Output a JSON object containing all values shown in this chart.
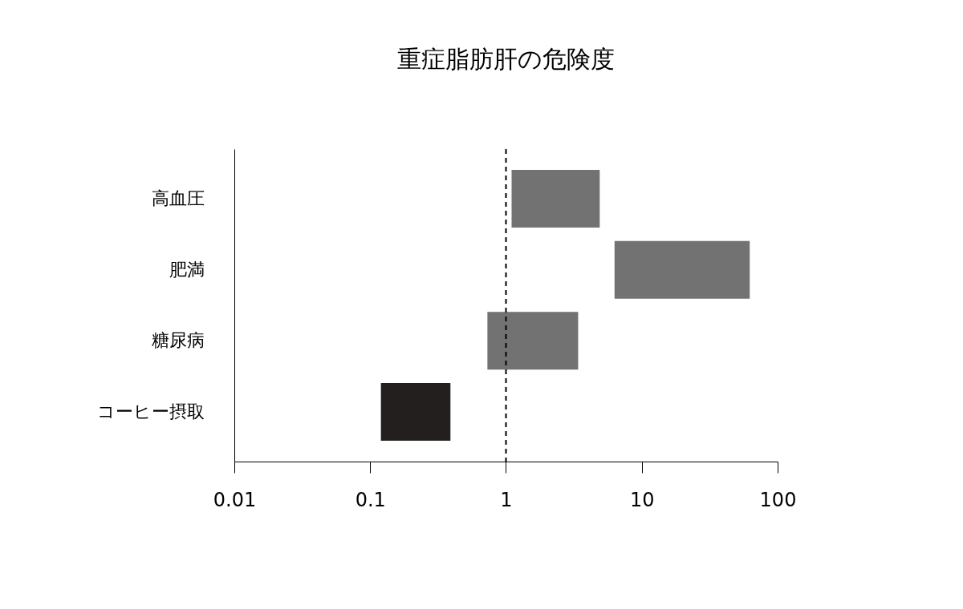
{
  "chart_data": {
    "type": "bar",
    "title": "重症脂肪肝の危険度",
    "orientation": "horizontal",
    "log": "x",
    "categories": [
      "高血圧",
      "肥満",
      "糖尿病",
      "コーヒー摂取"
    ],
    "base": [
      1.1,
      6.3,
      0.73,
      0.12
    ],
    "values": [
      3.8,
      56,
      2.67,
      0.27
    ],
    "colors": [
      "#737272",
      "#737272",
      "#737272",
      "#231f1f"
    ],
    "xlim": [
      0.01,
      100
    ],
    "xticks": [
      0.01,
      0.1,
      1,
      10,
      100
    ],
    "grid": false,
    "ref_lines": [
      {
        "axis": "x",
        "value": 1,
        "line_style": "dashed",
        "color": "#000000"
      }
    ]
  }
}
